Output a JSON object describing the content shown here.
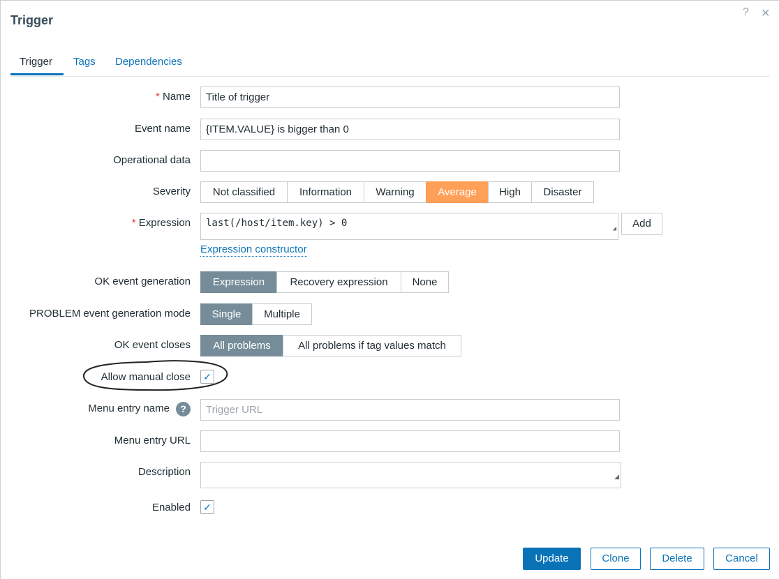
{
  "dialog": {
    "title": "Trigger",
    "help_icon": "?",
    "close_icon": "✕"
  },
  "tabs": [
    {
      "label": "Trigger",
      "active": true
    },
    {
      "label": "Tags"
    },
    {
      "label": "Dependencies"
    }
  ],
  "form": {
    "name": {
      "label": "Name",
      "value": "Title of trigger",
      "required": true
    },
    "event_name": {
      "label": "Event name",
      "value": "{ITEM.VALUE} is bigger than 0"
    },
    "operational_data": {
      "label": "Operational data",
      "value": ""
    },
    "severity": {
      "label": "Severity",
      "options": [
        "Not classified",
        "Information",
        "Warning",
        "Average",
        "High",
        "Disaster"
      ],
      "selected": "Average",
      "selected_color": "#ffa059"
    },
    "expression": {
      "label": "Expression",
      "value": "last(/host/item.key) > 0",
      "required": true,
      "add_label": "Add",
      "constructor_link": "Expression constructor"
    },
    "ok_event_generation": {
      "label": "OK event generation",
      "options": [
        "Expression",
        "Recovery expression",
        "None"
      ],
      "selected": "Expression"
    },
    "problem_mode": {
      "label": "PROBLEM event generation mode",
      "options": [
        "Single",
        "Multiple"
      ],
      "selected": "Single"
    },
    "ok_event_closes": {
      "label": "OK event closes",
      "options": [
        "All problems",
        "All problems if tag values match"
      ],
      "selected": "All problems"
    },
    "allow_manual_close": {
      "label": "Allow manual close",
      "checked": true
    },
    "menu_entry_name": {
      "label": "Menu entry name",
      "placeholder": "Trigger URL",
      "value": ""
    },
    "menu_entry_url": {
      "label": "Menu entry URL",
      "value": ""
    },
    "description": {
      "label": "Description",
      "value": ""
    },
    "enabled": {
      "label": "Enabled",
      "checked": true
    }
  },
  "footer": {
    "update": "Update",
    "clone": "Clone",
    "delete": "Delete",
    "cancel": "Cancel"
  }
}
